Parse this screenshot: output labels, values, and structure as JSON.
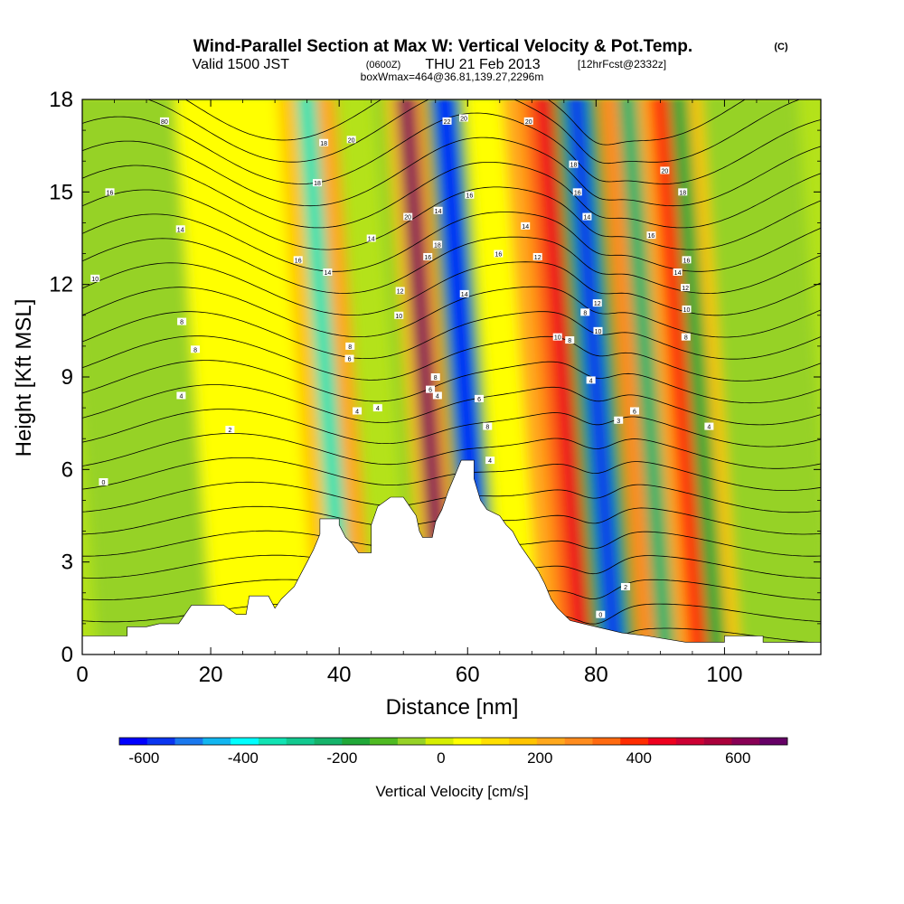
{
  "chart_data": {
    "type": "heatmap",
    "title": "Wind-Parallel Section at Max W: Vertical Velocity & Pot.Temp.",
    "title_tag": "(C)",
    "subtitle_main": "Valid 1500 JST",
    "subtitle_z": "(0600Z)",
    "subtitle_date": "THU 21 Feb 2013",
    "subtitle_fcst": "[12hrFcst@2332z]",
    "subtitle2": "boxWmax=464@36.81,139.27,2296m",
    "xlabel": "Distance [nm]",
    "ylabel": "Height [Kft MSL]",
    "xlim": [
      0,
      115
    ],
    "ylim": [
      0,
      18
    ],
    "x_ticks": [
      0,
      20,
      40,
      60,
      80,
      100
    ],
    "y_ticks": [
      0,
      3,
      6,
      9,
      12,
      15,
      18
    ],
    "colorbar": {
      "label": "Vertical Velocity [cm/s]",
      "range": [
        -650,
        700
      ],
      "tick_values": [
        -600,
        -400,
        -200,
        0,
        200,
        400,
        600
      ],
      "tick_labels": [
        "-600",
        "-400",
        "-200",
        "0",
        "200",
        "400",
        "600"
      ],
      "colors": [
        "#0000ff",
        "#0a35f0",
        "#1a78ee",
        "#12b6f0",
        "#00ffff",
        "#11e3b3",
        "#12c98f",
        "#15b36a",
        "#20a838",
        "#4fba22",
        "#96d226",
        "#d6ee00",
        "#ffff00",
        "#ffdf00",
        "#ffc400",
        "#ffa81c",
        "#ff8c1e",
        "#ff6a10",
        "#ff2c00",
        "#ee001e",
        "#cc0033",
        "#aa003b",
        "#880055",
        "#660066"
      ]
    },
    "velocity_cells": [
      {
        "x": [
          49,
          51
        ],
        "w": -70
      },
      {
        "x": [
          51,
          52.5
        ],
        "w": 180
      },
      {
        "x": [
          52.5,
          55.5
        ],
        "w": 620
      },
      {
        "x": [
          55.5,
          57
        ],
        "w": 200
      },
      {
        "x": [
          57,
          58.5
        ],
        "w": -150
      },
      {
        "x": [
          58.5,
          61.5
        ],
        "w": -600
      },
      {
        "x": [
          61.5,
          63
        ],
        "w": -150
      },
      {
        "x": [
          69,
          72
        ],
        "w": 200
      },
      {
        "x": [
          72,
          74
        ],
        "w": 350
      },
      {
        "x": [
          74,
          77
        ],
        "w": 460
      },
      {
        "x": [
          77,
          79
        ],
        "w": -200
      },
      {
        "x": [
          79,
          82
        ],
        "w": -560
      },
      {
        "x": [
          82,
          84
        ],
        "w": -150
      },
      {
        "x": [
          84,
          87
        ],
        "w": 250
      },
      {
        "x": [
          87,
          90
        ],
        "w": -250
      },
      {
        "x": [
          90,
          92
        ],
        "w": 200
      },
      {
        "x": [
          92,
          95
        ],
        "w": 380
      },
      {
        "x": [
          95,
          98
        ],
        "w": -180
      },
      {
        "x": [
          98,
          100
        ],
        "w": 150
      },
      {
        "x": [
          34,
          37
        ],
        "w": 150
      },
      {
        "x": [
          37,
          40
        ],
        "w": -350
      },
      {
        "x": [
          40,
          43
        ],
        "w": 200
      }
    ],
    "terrain": [
      [
        0,
        0.6
      ],
      [
        7,
        0.6
      ],
      [
        7,
        0.9
      ],
      [
        10,
        0.9
      ],
      [
        12,
        1.0
      ],
      [
        15,
        1.0
      ],
      [
        17,
        1.6
      ],
      [
        22,
        1.6
      ],
      [
        24,
        1.3
      ],
      [
        25.5,
        1.3
      ],
      [
        26,
        1.9
      ],
      [
        29,
        1.9
      ],
      [
        30,
        1.5
      ],
      [
        31,
        1.8
      ],
      [
        32,
        2.0
      ],
      [
        33,
        2.2
      ],
      [
        34,
        2.6
      ],
      [
        35,
        3.0
      ],
      [
        36,
        3.4
      ],
      [
        37,
        3.9
      ],
      [
        37,
        4.4
      ],
      [
        40,
        4.4
      ],
      [
        40,
        4.2
      ],
      [
        41,
        3.8
      ],
      [
        42,
        3.6
      ],
      [
        43,
        3.3
      ],
      [
        45,
        3.3
      ],
      [
        45,
        4.2
      ],
      [
        46,
        4.8
      ],
      [
        48,
        5.1
      ],
      [
        50,
        5.1
      ],
      [
        51,
        4.8
      ],
      [
        52,
        4.5
      ],
      [
        52.5,
        4.0
      ],
      [
        53,
        3.8
      ],
      [
        54.5,
        3.8
      ],
      [
        55,
        4.3
      ],
      [
        56,
        4.7
      ],
      [
        57,
        5.3
      ],
      [
        58,
        5.8
      ],
      [
        59,
        6.3
      ],
      [
        61,
        6.3
      ],
      [
        61,
        5.7
      ],
      [
        62,
        5.0
      ],
      [
        63,
        4.7
      ],
      [
        65,
        4.5
      ],
      [
        66,
        4.2
      ],
      [
        67,
        4.0
      ],
      [
        68,
        3.6
      ],
      [
        69,
        3.3
      ],
      [
        70,
        3.0
      ],
      [
        71,
        2.7
      ],
      [
        72,
        2.3
      ],
      [
        73,
        1.8
      ],
      [
        74,
        1.5
      ],
      [
        75,
        1.3
      ],
      [
        76,
        1.1
      ],
      [
        78,
        1.0
      ],
      [
        80,
        0.9
      ],
      [
        82,
        0.8
      ],
      [
        84,
        0.7
      ],
      [
        88,
        0.6
      ],
      [
        94,
        0.4
      ],
      [
        100,
        0.4
      ],
      [
        100,
        0.6
      ],
      [
        106,
        0.6
      ],
      [
        106,
        0.4
      ],
      [
        115,
        0.4
      ]
    ],
    "theta_contours": {
      "count": 24
    },
    "contour_labels": [
      {
        "x": 12.8,
        "y": 17.3,
        "t": "80"
      },
      {
        "x": 4.3,
        "y": 15.0,
        "t": "16"
      },
      {
        "x": 15.3,
        "y": 13.8,
        "t": "14"
      },
      {
        "x": 2.0,
        "y": 12.2,
        "t": "10"
      },
      {
        "x": 15.5,
        "y": 10.8,
        "t": "8"
      },
      {
        "x": 17.6,
        "y": 9.9,
        "t": "8"
      },
      {
        "x": 15.4,
        "y": 8.4,
        "t": "4"
      },
      {
        "x": 23.0,
        "y": 7.3,
        "t": "2"
      },
      {
        "x": 3.3,
        "y": 5.6,
        "t": "0"
      },
      {
        "x": 37.6,
        "y": 16.6,
        "t": "18"
      },
      {
        "x": 41.9,
        "y": 16.7,
        "t": "20"
      },
      {
        "x": 36.6,
        "y": 15.3,
        "t": "18"
      },
      {
        "x": 33.6,
        "y": 12.8,
        "t": "16"
      },
      {
        "x": 38.2,
        "y": 12.4,
        "t": "14"
      },
      {
        "x": 45.0,
        "y": 13.5,
        "t": "14"
      },
      {
        "x": 49.5,
        "y": 11.8,
        "t": "12"
      },
      {
        "x": 49.3,
        "y": 11.0,
        "t": "10"
      },
      {
        "x": 41.7,
        "y": 10.0,
        "t": "8"
      },
      {
        "x": 41.6,
        "y": 9.6,
        "t": "6"
      },
      {
        "x": 42.8,
        "y": 7.9,
        "t": "4"
      },
      {
        "x": 46.0,
        "y": 8.0,
        "t": "4"
      },
      {
        "x": 50.7,
        "y": 14.2,
        "t": "20"
      },
      {
        "x": 53.8,
        "y": 12.9,
        "t": "16"
      },
      {
        "x": 55.3,
        "y": 13.3,
        "t": "18"
      },
      {
        "x": 55.4,
        "y": 14.4,
        "t": "14"
      },
      {
        "x": 56.8,
        "y": 17.3,
        "t": "22"
      },
      {
        "x": 59.4,
        "y": 17.4,
        "t": "20"
      },
      {
        "x": 60.3,
        "y": 14.9,
        "t": "16"
      },
      {
        "x": 59.5,
        "y": 11.7,
        "t": "14"
      },
      {
        "x": 55.0,
        "y": 9.0,
        "t": "8"
      },
      {
        "x": 54.2,
        "y": 8.6,
        "t": "6"
      },
      {
        "x": 55.3,
        "y": 8.4,
        "t": "4"
      },
      {
        "x": 61.8,
        "y": 8.3,
        "t": "6"
      },
      {
        "x": 63.1,
        "y": 7.4,
        "t": "8"
      },
      {
        "x": 63.5,
        "y": 6.3,
        "t": "4"
      },
      {
        "x": 64.8,
        "y": 13.0,
        "t": "16"
      },
      {
        "x": 69.0,
        "y": 13.9,
        "t": "14"
      },
      {
        "x": 70.9,
        "y": 12.9,
        "t": "12"
      },
      {
        "x": 69.5,
        "y": 17.3,
        "t": "20"
      },
      {
        "x": 76.5,
        "y": 15.9,
        "t": "18"
      },
      {
        "x": 77.1,
        "y": 15.0,
        "t": "16"
      },
      {
        "x": 78.6,
        "y": 14.2,
        "t": "14"
      },
      {
        "x": 78.3,
        "y": 11.1,
        "t": "8"
      },
      {
        "x": 80.2,
        "y": 11.4,
        "t": "12"
      },
      {
        "x": 80.3,
        "y": 10.5,
        "t": "10"
      },
      {
        "x": 74.0,
        "y": 10.3,
        "t": "10"
      },
      {
        "x": 75.9,
        "y": 10.2,
        "t": "8"
      },
      {
        "x": 79.2,
        "y": 8.9,
        "t": "4"
      },
      {
        "x": 83.5,
        "y": 7.6,
        "t": "3"
      },
      {
        "x": 86.0,
        "y": 7.9,
        "t": "6"
      },
      {
        "x": 84.6,
        "y": 2.2,
        "t": "2"
      },
      {
        "x": 80.7,
        "y": 1.3,
        "t": "0"
      },
      {
        "x": 90.7,
        "y": 15.7,
        "t": "20"
      },
      {
        "x": 93.5,
        "y": 15.0,
        "t": "18"
      },
      {
        "x": 88.6,
        "y": 13.6,
        "t": "16"
      },
      {
        "x": 92.7,
        "y": 12.4,
        "t": "14"
      },
      {
        "x": 94.1,
        "y": 12.8,
        "t": "16"
      },
      {
        "x": 93.9,
        "y": 11.9,
        "t": "12"
      },
      {
        "x": 94.1,
        "y": 11.2,
        "t": "10"
      },
      {
        "x": 94.0,
        "y": 10.3,
        "t": "8"
      },
      {
        "x": 97.6,
        "y": 7.4,
        "t": "4"
      }
    ]
  }
}
